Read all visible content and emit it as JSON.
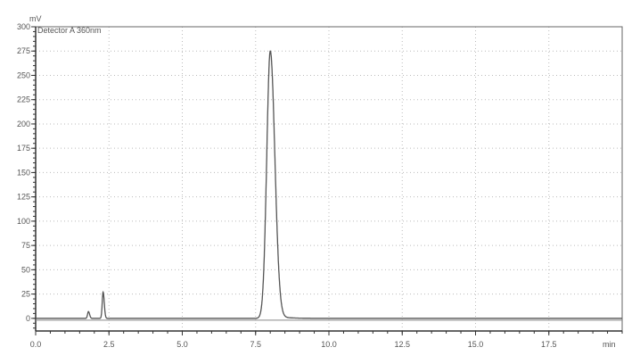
{
  "chart_data": {
    "type": "line",
    "title": "",
    "trace_label": "Detector A 360nm",
    "xlabel": "min",
    "ylabel": "mV",
    "xlim": [
      0,
      20
    ],
    "ylim": [
      -13,
      300
    ],
    "x_ticks": [
      "0.0",
      "2.5",
      "5.0",
      "7.5",
      "10.0",
      "12.5",
      "15.0",
      "17.5"
    ],
    "y_ticks": [
      "0",
      "25",
      "50",
      "75",
      "100",
      "125",
      "150",
      "175",
      "200",
      "225",
      "250",
      "275",
      "300"
    ],
    "grid": true,
    "baseline": 0,
    "peaks": [
      {
        "rt": 1.8,
        "height": 7
      },
      {
        "rt": 2.3,
        "height": 27
      },
      {
        "rt": 8.0,
        "height": 275
      }
    ],
    "colors": {
      "trace": "#555555",
      "grid": "#bbbbbb",
      "axis": "#333333"
    }
  }
}
